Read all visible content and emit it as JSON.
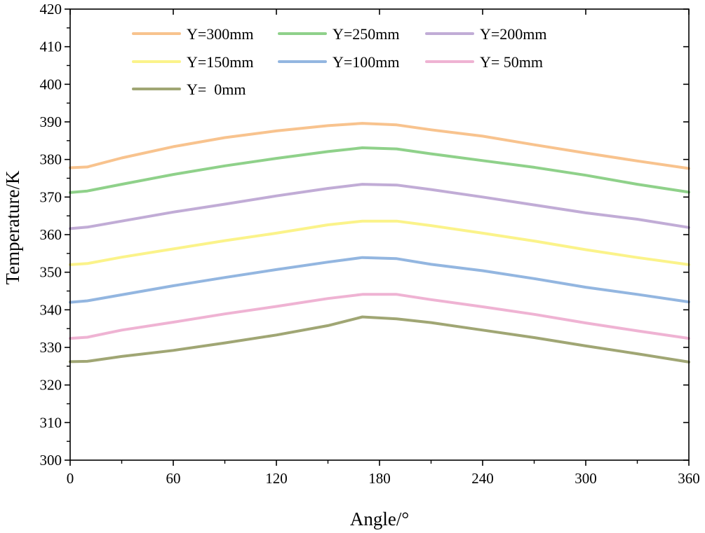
{
  "chart_data": {
    "type": "line",
    "title": "",
    "xlabel": "Angle/°",
    "ylabel": "Temperature/K",
    "xlim": [
      0,
      360
    ],
    "ylim": [
      300,
      420
    ],
    "x_ticks": [
      0,
      60,
      120,
      180,
      240,
      300,
      360
    ],
    "y_ticks": [
      300,
      310,
      320,
      330,
      340,
      350,
      360,
      370,
      380,
      390,
      400,
      410,
      420
    ],
    "x_tick_labels": [
      "0",
      "60",
      "120",
      "180",
      "240",
      "300",
      "360"
    ],
    "y_tick_labels": [
      "300",
      "310",
      "320",
      "330",
      "340",
      "350",
      "360",
      "370",
      "380",
      "390",
      "400",
      "410",
      "420"
    ],
    "grid": false,
    "legend_position": "top-left",
    "x": [
      0,
      10,
      30,
      60,
      90,
      120,
      150,
      170,
      190,
      210,
      240,
      270,
      300,
      330,
      360
    ],
    "series": [
      {
        "name": "Y=300mm",
        "color": "#f8c38e",
        "values": [
          377.8,
          378.0,
          380.4,
          383.4,
          385.8,
          387.6,
          389.0,
          389.6,
          389.2,
          387.9,
          386.2,
          383.9,
          381.7,
          379.6,
          377.6
        ]
      },
      {
        "name": "Y=250mm",
        "color": "#8fd18a",
        "values": [
          371.2,
          371.6,
          373.4,
          376.0,
          378.3,
          380.3,
          382.1,
          383.1,
          382.8,
          381.5,
          379.7,
          377.9,
          375.8,
          373.4,
          371.3
        ]
      },
      {
        "name": "Y=200mm",
        "color": "#c1acd6",
        "values": [
          361.6,
          362.0,
          363.6,
          366.0,
          368.1,
          370.3,
          372.3,
          373.4,
          373.2,
          372.0,
          370.0,
          367.9,
          365.8,
          364.1,
          361.9
        ]
      },
      {
        "name": "Y=150mm",
        "color": "#fbf38a",
        "values": [
          352.0,
          352.3,
          354.0,
          356.2,
          358.4,
          360.4,
          362.6,
          363.6,
          363.6,
          362.4,
          360.4,
          358.3,
          356.0,
          353.9,
          352.0
        ]
      },
      {
        "name": "Y=100mm",
        "color": "#93b6e0",
        "values": [
          342.0,
          342.4,
          344.0,
          346.4,
          348.6,
          350.7,
          352.7,
          353.9,
          353.6,
          352.1,
          350.4,
          348.3,
          346.0,
          344.1,
          342.1
        ]
      },
      {
        "name": "Y= 50mm",
        "color": "#efb3d3",
        "values": [
          332.4,
          332.7,
          334.6,
          336.7,
          338.9,
          340.9,
          343.0,
          344.1,
          344.1,
          342.7,
          340.8,
          338.8,
          336.5,
          334.4,
          332.4
        ]
      },
      {
        "name": "Y=  0mm",
        "color": "#a0a674",
        "values": [
          326.2,
          326.3,
          327.6,
          329.2,
          331.2,
          333.3,
          335.8,
          338.1,
          337.6,
          336.6,
          334.6,
          332.6,
          330.4,
          328.3,
          326.1
        ]
      }
    ]
  }
}
